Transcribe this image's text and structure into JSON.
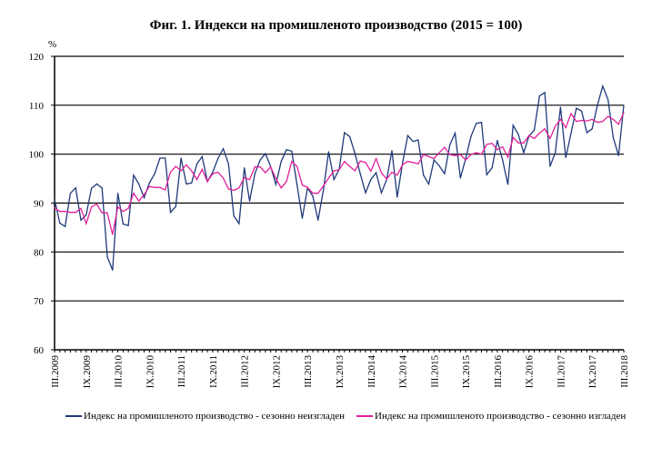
{
  "chart_data": {
    "type": "line",
    "title": "Фиг. 1. Индекси на промишленото производство (2015 = 100)",
    "ylabel": "%",
    "xlabel": "",
    "ylim": [
      60,
      120
    ],
    "yticks": [
      60,
      70,
      80,
      90,
      100,
      110,
      120
    ],
    "grid": true,
    "legend_position": "bottom",
    "x_start": "III.2009",
    "x_end": "III.2018",
    "xtick_labels": [
      "III.2009",
      "IX.2009",
      "III.2010",
      "IX.2010",
      "III.2011",
      "IX.2011",
      "III.2012",
      "IX.2012",
      "III.2013",
      "IX.2013",
      "III.2014",
      "IX.2014",
      "III.2015",
      "IX.2015",
      "III.2016",
      "IX.2016",
      "III.2017",
      "IX.2017",
      "III.2018"
    ],
    "xtick_every": 6,
    "series": [
      {
        "name": "Индекс на промишленото производство - сезонно  неизгладен",
        "color": "#1f3a7a",
        "values": [
          90.7,
          85.9,
          85.2,
          92.0,
          93.1,
          86.5,
          87.6,
          93.0,
          93.9,
          93.1,
          79.0,
          76.3,
          92.0,
          85.7,
          85.4,
          95.7,
          93.9,
          91.1,
          94.1,
          96.0,
          99.2,
          99.2,
          88.1,
          89.3,
          99.2,
          93.9,
          94.1,
          98.0,
          99.5,
          94.4,
          96.3,
          99.1,
          101.1,
          98.0,
          87.4,
          85.8,
          97.2,
          90.4,
          96.0,
          98.8,
          100.1,
          97.5,
          93.8,
          98.5,
          100.9,
          100.6,
          93.8,
          86.9,
          93.1,
          91.4,
          86.5,
          92.6,
          100.5,
          94.8,
          96.9,
          104.4,
          103.6,
          100.1,
          96.0,
          92.1,
          94.8,
          96.2,
          92.1,
          94.8,
          100.7,
          91.2,
          98.1,
          103.8,
          102.6,
          102.9,
          95.7,
          93.9,
          98.8,
          97.6,
          96.0,
          101.9,
          104.3,
          95.1,
          99.1,
          103.6,
          106.3,
          106.5,
          95.8,
          97.2,
          102.8,
          98.8,
          93.8,
          105.9,
          104.0,
          100.3,
          103.7,
          104.9,
          111.9,
          112.6,
          97.5,
          100.3,
          109.6,
          99.3,
          104.3,
          109.4,
          108.8,
          104.4,
          105.2,
          110.0,
          113.9,
          111.2,
          103.4,
          99.7,
          110.0
        ]
      },
      {
        "name": "Индекс на промишленото производство - сезонно изгладен",
        "color": "#e0209a",
        "values": [
          89.0,
          88.3,
          88.3,
          88.1,
          88.1,
          88.9,
          85.8,
          89.2,
          89.8,
          88.0,
          88.0,
          83.6,
          89.2,
          88.3,
          88.9,
          92.0,
          90.4,
          91.7,
          93.4,
          93.2,
          93.2,
          92.7,
          96.3,
          97.5,
          96.6,
          97.8,
          96.6,
          94.8,
          96.9,
          94.4,
          96.0,
          96.3,
          95.1,
          92.9,
          92.6,
          93.1,
          95.2,
          94.8,
          97.4,
          97.4,
          96.2,
          97.4,
          95.0,
          93.1,
          94.4,
          98.5,
          97.5,
          93.7,
          93.2,
          92.0,
          92.0,
          93.5,
          95.1,
          96.6,
          96.8,
          98.5,
          97.5,
          96.6,
          98.6,
          98.3,
          96.5,
          99.1,
          96.2,
          94.9,
          96.3,
          95.7,
          97.8,
          98.5,
          98.3,
          98.0,
          99.9,
          99.5,
          99.1,
          100.3,
          101.4,
          99.9,
          99.7,
          99.9,
          98.8,
          99.9,
          100.3,
          100.0,
          102.0,
          102.2,
          100.9,
          101.5,
          99.4,
          103.4,
          102.3,
          102.3,
          103.8,
          103.2,
          104.3,
          105.2,
          103.2,
          105.7,
          107.1,
          105.4,
          108.3,
          106.7,
          106.9,
          106.8,
          107.1,
          106.5,
          106.7,
          107.7,
          107.1,
          106.1,
          108.5
        ]
      }
    ]
  }
}
